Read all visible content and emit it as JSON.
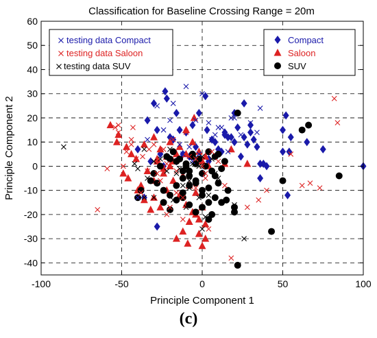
{
  "caption": "(c)",
  "chart_data": {
    "type": "scatter",
    "title": "Classification for Baseline Crossing Range = 20m",
    "xlabel": "Principle Component 1",
    "ylabel": "Principle Component 2",
    "xlim": [
      -100,
      100
    ],
    "ylim": [
      -45,
      60
    ],
    "xticks": [
      -100,
      -50,
      0,
      50,
      100
    ],
    "yticks": [
      -40,
      -30,
      -20,
      -10,
      0,
      10,
      20,
      30,
      40,
      50,
      60
    ],
    "grid": "dashed at major ticks",
    "legends": [
      {
        "placement": "top-left",
        "entries": [
          {
            "label": "testing data Compact",
            "color": "#1a1aaa",
            "marker": "x"
          },
          {
            "label": "testing data Saloon",
            "color": "#dd2222",
            "marker": "x"
          },
          {
            "label": "testing data SUV",
            "color": "#000000",
            "marker": "x"
          }
        ]
      },
      {
        "placement": "top-right",
        "entries": [
          {
            "label": "Compact",
            "color": "#1a1aaa",
            "marker": "diamond"
          },
          {
            "label": "Saloon",
            "color": "#dd2222",
            "marker": "triangle"
          },
          {
            "label": "SUV",
            "color": "#000000",
            "marker": "circle"
          }
        ]
      }
    ],
    "series": [
      {
        "name": "Compact",
        "color": "#1a1aaa",
        "marker": "diamond",
        "x": [
          -23,
          -22,
          -16,
          -30,
          -34,
          -28,
          -20,
          -18,
          -14,
          -10,
          -6,
          -2,
          2,
          6,
          10,
          14,
          18,
          22,
          26,
          30,
          34,
          -12,
          -8,
          -4,
          4,
          8,
          12,
          16,
          20,
          24,
          28,
          32,
          36,
          -24,
          -26,
          -36,
          -40,
          -32,
          0,
          4,
          -28,
          50,
          52,
          55,
          54,
          65,
          75,
          100,
          50,
          53,
          38,
          36,
          20,
          -16,
          40,
          3,
          30,
          26,
          14
        ],
        "y": [
          31,
          28,
          22,
          26,
          19,
          15,
          12,
          11,
          15,
          14,
          17,
          22,
          29,
          11,
          7,
          14,
          12,
          16,
          26,
          17,
          8,
          5,
          4,
          8,
          3,
          10,
          6,
          12,
          10,
          4,
          9,
          11,
          1,
          0,
          5,
          -13,
          7,
          2,
          -3,
          2,
          -25,
          15,
          21,
          12,
          6,
          10,
          7,
          0,
          6,
          -12,
          1,
          -5,
          22,
          2,
          0,
          15,
          14,
          12,
          13
        ]
      },
      {
        "name": "Saloon",
        "color": "#dd2222",
        "marker": "triangle",
        "x": [
          -57,
          -52,
          -47,
          -44,
          -49,
          -53,
          -41,
          -36,
          -30,
          -26,
          -22,
          -18,
          -14,
          -10,
          -6,
          -2,
          2,
          -46,
          -38,
          -34,
          -28,
          -24,
          -20,
          -16,
          -12,
          -8,
          -4,
          0,
          4,
          -30,
          -26,
          -22,
          -18,
          -14,
          -10,
          -6,
          -2,
          2,
          -16,
          -12,
          -8,
          -4,
          0,
          -9,
          -2,
          0,
          2,
          14,
          18,
          -40,
          -36,
          -32,
          -28,
          -24,
          28,
          -5,
          -10,
          -20,
          -30
        ],
        "y": [
          17,
          13,
          8,
          5,
          -3,
          10,
          3,
          9,
          12,
          7,
          4,
          2,
          8,
          5,
          10,
          6,
          4,
          -5,
          -8,
          -2,
          3,
          -1,
          0,
          5,
          -4,
          -8,
          -11,
          2,
          0,
          -13,
          -17,
          -10,
          -6,
          -12,
          -16,
          -19,
          -22,
          -24,
          -30,
          -27,
          -23,
          -20,
          -17,
          -32,
          -28,
          -33,
          -30,
          1,
          7,
          -10,
          -14,
          -18,
          2,
          -3,
          1,
          20,
          15,
          10,
          -6
        ]
      },
      {
        "name": "SUV",
        "color": "#000000",
        "marker": "circle",
        "x": [
          -40,
          -38,
          -32,
          -30,
          -26,
          -22,
          -18,
          -14,
          -10,
          -6,
          -2,
          2,
          6,
          10,
          14,
          -28,
          -24,
          -20,
          -16,
          -12,
          -8,
          -4,
          0,
          4,
          8,
          12,
          -24,
          -20,
          -16,
          -12,
          -8,
          -4,
          0,
          4,
          8,
          -20,
          -16,
          -12,
          -8,
          -4,
          0,
          4,
          -12,
          -8,
          -4,
          0,
          4,
          8,
          12,
          16,
          20,
          22,
          50,
          62,
          66,
          85,
          43,
          22,
          20,
          -10,
          -6,
          10,
          15,
          6
        ],
        "y": [
          -13,
          -10,
          -6,
          -3,
          0,
          4,
          6,
          3,
          1,
          5,
          3,
          0,
          -2,
          5,
          2,
          -7,
          -10,
          -12,
          -8,
          -5,
          -2,
          1,
          -3,
          6,
          4,
          -1,
          -15,
          -18,
          -14,
          -11,
          -8,
          -6,
          -12,
          -9,
          -4,
          3,
          2,
          -2,
          -4,
          -7,
          -10,
          -15,
          -13,
          -16,
          -19,
          -17,
          -22,
          -13,
          -15,
          -10,
          -19,
          -41,
          -6,
          15,
          17,
          -4,
          -27,
          22,
          -17,
          0,
          4,
          -7,
          -14,
          -20
        ]
      },
      {
        "name": "testing data Compact",
        "color": "#1a1aaa",
        "marker": "x",
        "x": [
          -28,
          -20,
          -18,
          -10,
          -4,
          0,
          8,
          10,
          12,
          18,
          20,
          36,
          -34,
          -24,
          -14,
          4,
          24,
          30,
          -40,
          34,
          6,
          16,
          -2,
          -6,
          -8,
          -12
        ],
        "y": [
          25,
          19,
          26,
          33,
          19,
          30,
          13,
          16,
          16,
          20,
          20,
          24,
          11,
          15,
          9,
          18,
          13,
          18,
          -13,
          14,
          11,
          6,
          5,
          2,
          8,
          5
        ]
      },
      {
        "name": "testing data Saloon",
        "color": "#dd2222",
        "marker": "x",
        "x": [
          -65,
          -59,
          -54,
          -52,
          -49,
          -44,
          -41,
          -37,
          -33,
          -28,
          -24,
          -18,
          -10,
          -4,
          0,
          2,
          6,
          10,
          14,
          -47,
          -43,
          -38,
          -34,
          -30,
          -26,
          -22,
          -16,
          -12,
          -8,
          -4,
          2,
          -20,
          -16,
          -12,
          4,
          18,
          62,
          67,
          73,
          82,
          84,
          55,
          40,
          35,
          28,
          -52,
          -44,
          -22
        ],
        "y": [
          -18,
          -1,
          16,
          14,
          0,
          9,
          3,
          4,
          7,
          -3,
          7,
          11,
          14,
          3,
          0,
          -5,
          6,
          2,
          -8,
          6,
          16,
          -11,
          -2,
          9,
          -6,
          1,
          -2,
          -13,
          4,
          -9,
          -3,
          -17,
          -11,
          -22,
          -26,
          -38,
          -8,
          -7,
          -9,
          28,
          18,
          5,
          -10,
          -14,
          -17,
          17,
          11,
          -20
        ]
      },
      {
        "name": "testing data SUV",
        "color": "#000000",
        "marker": "x",
        "x": [
          -86,
          -42,
          -36,
          -30,
          -24,
          -18,
          -12,
          -6,
          0,
          6,
          -34,
          -28,
          -22,
          -16,
          -10,
          -4,
          2,
          8,
          -26,
          -20,
          -14,
          -8,
          -2,
          4,
          10,
          0,
          26,
          20,
          -40,
          -36,
          -30,
          -14,
          -8,
          -2
        ],
        "y": [
          8,
          1,
          -13,
          -13,
          -10,
          -14,
          -8,
          1,
          4,
          3,
          -5,
          -7,
          -2,
          -3,
          -17,
          -19,
          -21,
          -3,
          3,
          7,
          -1,
          -6,
          0,
          -12,
          -5,
          -26,
          -30,
          -16,
          -1,
          7,
          2,
          3,
          -9,
          -13
        ]
      }
    ]
  }
}
